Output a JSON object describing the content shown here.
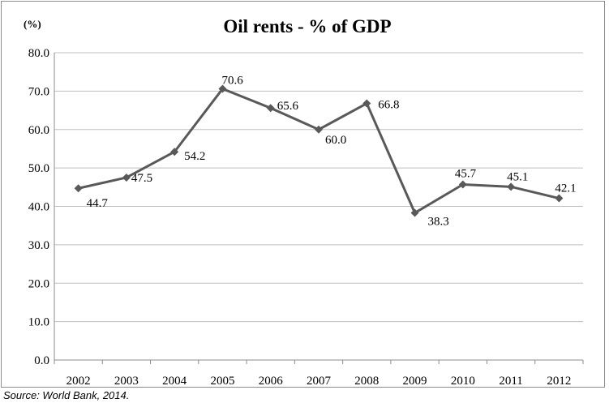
{
  "chart_data": {
    "type": "line",
    "title": "Oil rents - % of GDP",
    "ylabel": "(%)",
    "xlabel": "",
    "categories": [
      "2002",
      "2003",
      "2004",
      "2005",
      "2006",
      "2007",
      "2008",
      "2009",
      "2010",
      "2011",
      "2012"
    ],
    "values": [
      44.7,
      47.5,
      54.2,
      70.6,
      65.6,
      60.0,
      66.8,
      38.3,
      45.7,
      45.1,
      42.1
    ],
    "data_labels": [
      "44.7",
      "47.5",
      "54.2",
      "70.6",
      "65.6",
      "60.0",
      "66.8",
      "38.3",
      "45.7",
      "45.1",
      "42.1"
    ],
    "ylim": [
      0,
      80
    ],
    "yticks": [
      "0.0",
      "10.0",
      "20.0",
      "30.0",
      "40.0",
      "50.0",
      "60.0",
      "70.0",
      "80.0"
    ],
    "grid": "horizontal",
    "line_color": "#595959",
    "marker": "diamond"
  },
  "source": "Source: World Bank, 2014."
}
